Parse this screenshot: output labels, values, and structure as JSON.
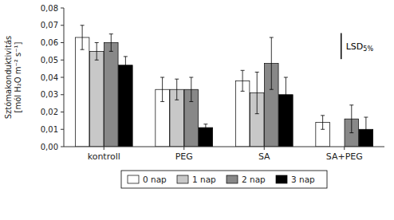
{
  "chart_data": {
    "type": "bar",
    "categories": [
      "kontroll",
      "PEG",
      "SA",
      "SA+PEG"
    ],
    "series": [
      {
        "name": "0 nap",
        "color": "white",
        "values": [
          0.063,
          0.033,
          0.038,
          0.014
        ],
        "errors": [
          0.007,
          0.007,
          0.006,
          0.004
        ]
      },
      {
        "name": "1 nap",
        "color": "#c8c8c8",
        "values": [
          0.055,
          0.033,
          0.031,
          0.0
        ],
        "errors": [
          0.005,
          0.006,
          0.012,
          null
        ]
      },
      {
        "name": "2 nap",
        "color": "#888888",
        "values": [
          0.06,
          0.033,
          0.048,
          0.016
        ],
        "errors": [
          0.005,
          0.007,
          0.015,
          0.008
        ]
      },
      {
        "name": "3 nap",
        "color": "black",
        "values": [
          0.047,
          0.011,
          0.03,
          0.01
        ],
        "errors": [
          0.005,
          0.002,
          0.01,
          0.007
        ]
      }
    ],
    "ylabel": "Sztómakonduktivitás\n[mól H₂O m⁻² s⁻¹]",
    "ylim": [
      0,
      0.08
    ],
    "yticks": [
      {
        "value": 0,
        "label": "0,00"
      },
      {
        "value": 0.01,
        "label": "0,01"
      },
      {
        "value": 0.02,
        "label": "0,02"
      },
      {
        "value": 0.03,
        "label": "0,03"
      },
      {
        "value": 0.04,
        "label": "0,04"
      },
      {
        "value": 0.05,
        "label": "0,05"
      },
      {
        "value": 0.06,
        "label": "0,06"
      },
      {
        "value": 0.07,
        "label": "0,07"
      },
      {
        "value": 0.08,
        "label": "0,08"
      }
    ],
    "annotations": [
      {
        "text": "LSD",
        "subscript": "5%",
        "center": 0.058,
        "height": 0.015
      }
    ],
    "grid": false,
    "legend": "bottom"
  }
}
